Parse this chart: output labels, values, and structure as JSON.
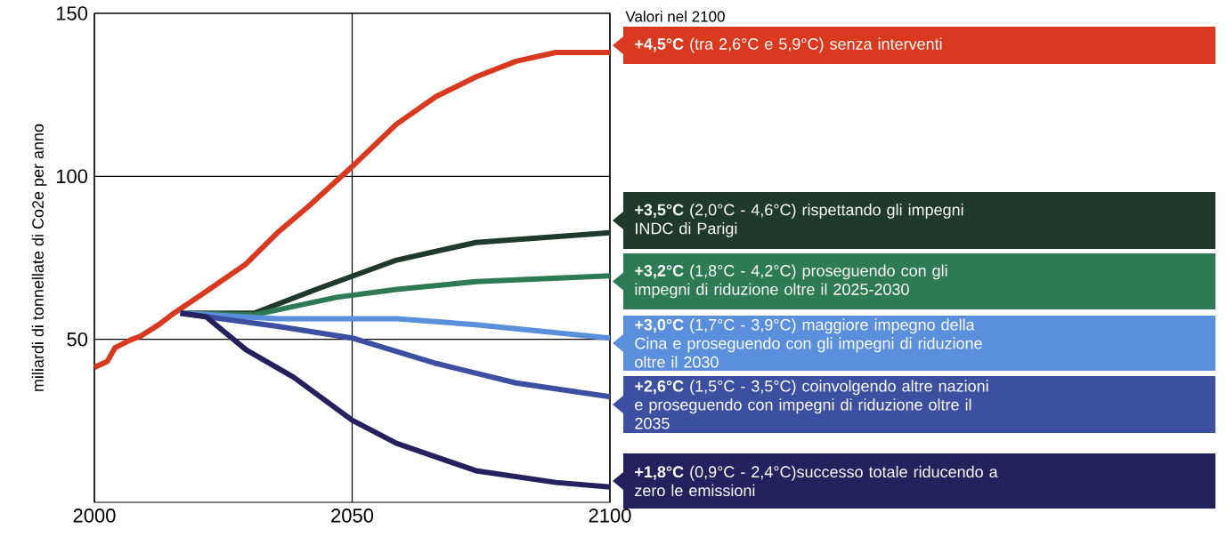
{
  "chart_data": {
    "type": "line",
    "ylabel": "miliardi di tonnellate di Co2e per anno",
    "annotations": [
      "Valori nel 2100"
    ],
    "xlim": [
      2000,
      2100
    ],
    "xticks": [
      2000,
      2050,
      2100
    ],
    "ylim": [
      0,
      150
    ],
    "yticks": [
      50,
      100,
      150
    ],
    "grid": true,
    "legend": "right",
    "series": [
      {
        "name": "**+4,5°C** (tra 2,6°C e  5,9°C) senza interventi",
        "color": "#d8391f",
        "x": [
          2000,
          2002.5,
          2004,
          2007,
          2009,
          2012.5,
          2015.5,
          2021.7,
          2029.4,
          2035.5,
          2041.7,
          2050,
          2058.6,
          2066.3,
          2074,
          2081.8,
          2089.5,
          2100
        ],
        "values": [
          41.4,
          43.2,
          47.4,
          49.8,
          51,
          54.5,
          58.1,
          64.7,
          73.1,
          82.7,
          91,
          103,
          116,
          124.5,
          130.5,
          135.3,
          138,
          138
        ]
      },
      {
        "name": "**+3,5°C** (2,0°C - 4,6°C) rispettando gli impegni INDC di Parigi",
        "color": "#1f3a2c",
        "x": [
          2016.7,
          2031,
          2043,
          2058.6,
          2074,
          2100
        ],
        "values": [
          58,
          58,
          65.3,
          74.3,
          79.7,
          82.7
        ]
      },
      {
        "name": "**+3,2°C** (1,8°C - 4,2°C) proseguendo con gli impegni di riduzione oltre il 2025-2030",
        "color": "#2e7a55",
        "x": [
          2016.7,
          2031,
          2047,
          2058.6,
          2074,
          2100
        ],
        "values": [
          58,
          57.5,
          62.9,
          65.3,
          67.7,
          69.5
        ]
      },
      {
        "name": "**+3,0°C** (1,7°C - 3,9°C) maggiore impegno della Cina e proseguendo con gli impegni di riduzione oltre il 2030",
        "color": "#5a8fdc",
        "x": [
          2016.7,
          2035.5,
          2058.6,
          2074,
          2100
        ],
        "values": [
          58,
          56.3,
          56.3,
          54.5,
          50.4
        ]
      },
      {
        "name": "**+2,6°C** (1,5°C - 3,5°C) coinvolgendo altre nazioni e proseguendo con impegni di riduzione oltre il 2035",
        "color": "#3d4fa0",
        "x": [
          2016.7,
          2035.5,
          2050,
          2066.3,
          2081.8,
          2100
        ],
        "values": [
          58,
          54,
          50.4,
          42.6,
          36.6,
          32.4
        ]
      },
      {
        "name": "**+1,8°C** (0,9°C - 2,4°C)successo totale riducendo a zero le emissioni",
        "color": "#25215e",
        "x": [
          2016.7,
          2021.7,
          2029.4,
          2038.6,
          2050,
          2058.6,
          2074,
          2089.5,
          2100
        ],
        "values": [
          58,
          56.9,
          46.8,
          38.4,
          25.2,
          18.1,
          9.7,
          6.1,
          4.7
        ]
      }
    ]
  }
}
